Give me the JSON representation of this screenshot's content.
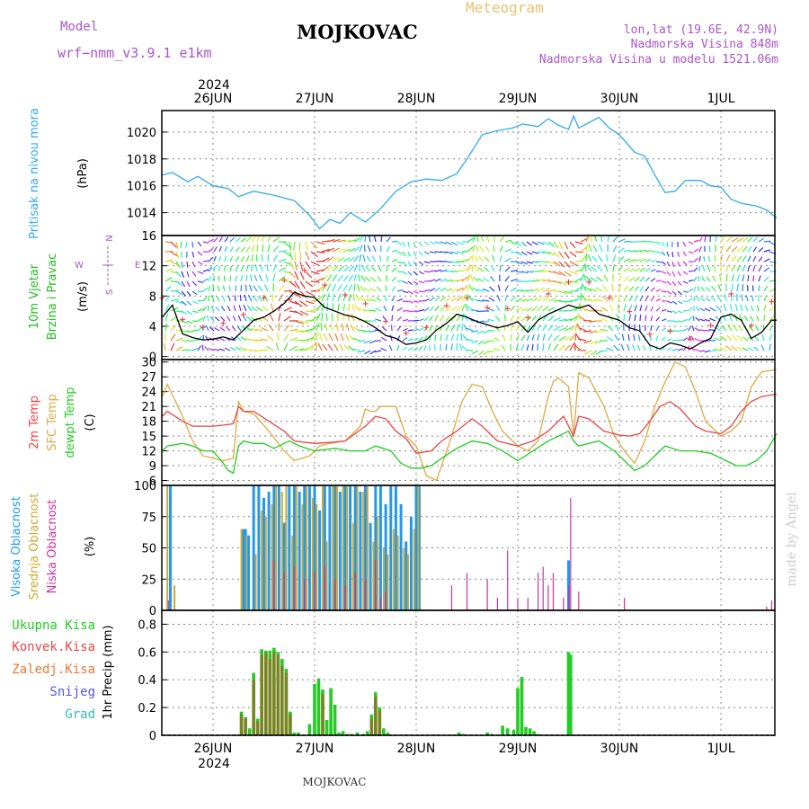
{
  "header": {
    "model_label": "Model",
    "model_name": "wrf−nmm_v3.9.1  e1km",
    "station": "MOJKOVAC",
    "meteogram_label": "Meteogram",
    "lonlat": "lon,lat (19.6E, 42.9N)",
    "elevation": "Nadmorska Visina 848m",
    "model_elevation": "Nadmorska Visina u modelu 1521.06m"
  },
  "footer": {
    "station": "MOJKOVAC",
    "credit": "made by Angel"
  },
  "colors": {
    "pressure": "#33aaee",
    "t2m": "#ee4444",
    "sfc": "#ddaa44",
    "dew": "#22cc22",
    "high_cloud": "#2299ee",
    "mid_cloud": "#ccaa33",
    "low_cloud": "#cc3399",
    "purple_text": "#aa55cc"
  },
  "chart_data": [
    {
      "type": "line",
      "title": "",
      "ylabel": "Pritisak na nivou mora",
      "unit": "(hPa)",
      "yticks": [
        1014,
        1016,
        1018,
        1020
      ],
      "ylim": [
        1012.3,
        1021.6
      ],
      "x_labels_top": [
        "26JUN",
        "27JUN",
        "28JUN",
        "29JUN",
        "30JUN",
        "1JUL"
      ],
      "year": "2024",
      "series": [
        {
          "x": [
            -0.5,
            -0.4,
            -0.25,
            -0.15,
            0,
            0.15,
            0.25,
            0.4,
            0.6,
            0.8,
            0.95,
            1.05,
            1.15,
            1.25,
            1.35,
            1.5,
            1.65,
            1.8,
            1.95,
            2.1,
            2.25,
            2.4,
            2.5,
            2.65,
            2.8,
            2.95,
            3.05,
            3.2,
            3.3,
            3.4,
            3.5,
            3.55,
            3.6,
            3.7,
            3.8,
            3.85,
            3.9,
            4.0,
            4.15,
            4.25,
            4.35,
            4.45,
            4.55,
            4.65,
            4.8,
            4.9,
            5.0,
            5.1,
            5.2,
            5.35,
            5.45,
            5.55
          ],
          "y": [
            1016.8,
            1017,
            1016.3,
            1016.7,
            1016,
            1015.8,
            1015.2,
            1015.6,
            1015.3,
            1014.9,
            1013.8,
            1012.8,
            1013.5,
            1013.2,
            1014,
            1013.3,
            1014.3,
            1015.6,
            1016.3,
            1016.5,
            1016.4,
            1016.9,
            1018,
            1019.8,
            1020.1,
            1020.3,
            1020.6,
            1020.4,
            1021,
            1020.5,
            1020.2,
            1021.2,
            1020.3,
            1020.7,
            1021.1,
            1020.7,
            1020.3,
            1019.8,
            1018.5,
            1018.2,
            1016.8,
            1015.5,
            1015.6,
            1016.4,
            1016.4,
            1016,
            1015.9,
            1015,
            1014.7,
            1014.5,
            1014.2,
            1013.6
          ]
        }
      ]
    },
    {
      "type": "line",
      "title": "",
      "ylabel": "10m Vjetar Brzina i Pravac",
      "unit": "(m/s)",
      "direction_key": [
        "N",
        "E",
        "W",
        "S"
      ],
      "yticks": [
        0,
        4,
        8,
        12,
        16
      ],
      "ylim": [
        -0.4,
        16
      ],
      "series": [
        {
          "x": [
            -0.5,
            -0.4,
            -0.3,
            -0.2,
            -0.1,
            0,
            0.1,
            0.2,
            0.3,
            0.4,
            0.5,
            0.6,
            0.7,
            0.8,
            0.9,
            1.0,
            1.1,
            1.2,
            1.3,
            1.4,
            1.5,
            1.6,
            1.7,
            1.8,
            1.9,
            2.0,
            2.1,
            2.2,
            2.3,
            2.4,
            2.5,
            2.6,
            2.7,
            2.8,
            2.9,
            3.0,
            3.1,
            3.2,
            3.3,
            3.4,
            3.5,
            3.6,
            3.7,
            3.8,
            3.9,
            4.0,
            4.1,
            4.2,
            4.3,
            4.4,
            4.5,
            4.6,
            4.7,
            4.8,
            4.9,
            5.0,
            5.1,
            5.2,
            5.3,
            5.4,
            5.5,
            5.55
          ],
          "y": [
            5.2,
            6.8,
            3,
            2.5,
            2.2,
            2.3,
            2.6,
            2.2,
            3.5,
            4.8,
            5.2,
            6,
            7,
            8.5,
            8,
            7.8,
            6.5,
            6,
            5.5,
            5.2,
            4.6,
            3.8,
            2.8,
            2.4,
            1.6,
            1.8,
            2.2,
            3.5,
            4.4,
            5.6,
            5.2,
            4.6,
            4.2,
            3.8,
            4.1,
            4.6,
            3.2,
            4.8,
            5.6,
            6.2,
            6.8,
            6.4,
            6.8,
            5.6,
            5.2,
            4.8,
            3.8,
            3.4,
            1.5,
            1,
            1.8,
            1.5,
            1,
            1.8,
            2.4,
            5.2,
            5.6,
            4.8,
            2.4,
            3.2,
            4.8,
            4.8
          ]
        }
      ]
    },
    {
      "type": "line",
      "title": "",
      "ylabel": "2m Temp / SFC Temp / dewpt Temp",
      "unit": "(C)",
      "yticks": [
        6,
        9,
        12,
        15,
        18,
        21,
        24,
        27,
        30
      ],
      "ylim": [
        5,
        30.5
      ],
      "series": [
        {
          "name": "2m Temp",
          "x": [
            -0.5,
            -0.45,
            -0.3,
            -0.2,
            0,
            0.1,
            0.2,
            0.25,
            0.3,
            0.4,
            0.55,
            0.7,
            0.8,
            1.0,
            1.15,
            1.3,
            1.5,
            1.6,
            1.7,
            1.8,
            1.9,
            2.0,
            2.15,
            2.25,
            2.4,
            2.55,
            2.65,
            2.8,
            3.0,
            3.15,
            3.3,
            3.45,
            3.5,
            3.55,
            3.6,
            3.7,
            3.85,
            4.0,
            4.1,
            4.2,
            4.3,
            4.4,
            4.5,
            4.6,
            4.75,
            4.85,
            5.0,
            5.1,
            5.2,
            5.3,
            5.4,
            5.55
          ],
          "y": [
            19,
            20,
            18,
            17,
            17,
            17.2,
            17.5,
            21,
            20,
            20,
            18,
            16,
            14,
            13.5,
            13.7,
            14,
            17,
            19,
            18.5,
            16,
            14.5,
            11.5,
            12,
            14,
            16,
            18.5,
            17,
            14,
            13,
            14,
            16,
            19,
            17,
            15,
            19,
            18.5,
            16,
            15.2,
            15,
            15.5,
            18,
            21,
            22,
            20.5,
            17,
            16,
            15.5,
            17,
            20,
            22,
            23,
            23.5
          ]
        },
        {
          "name": "SFC Temp",
          "x": [
            -0.5,
            -0.45,
            -0.3,
            -0.2,
            -0.1,
            0,
            0.1,
            0.2,
            0.25,
            0.3,
            0.4,
            0.55,
            0.7,
            0.8,
            0.95,
            1.05,
            1.15,
            1.3,
            1.45,
            1.5,
            1.55,
            1.6,
            1.65,
            1.8,
            1.9,
            2.0,
            2.1,
            2.2,
            2.35,
            2.45,
            2.55,
            2.65,
            2.75,
            2.85,
            3.0,
            3.1,
            3.2,
            3.3,
            3.35,
            3.4,
            3.5,
            3.55,
            3.6,
            3.7,
            3.85,
            3.95,
            4.05,
            4.15,
            4.25,
            4.35,
            4.45,
            4.55,
            4.65,
            4.75,
            4.85,
            5.0,
            5.1,
            5.2,
            5.3,
            5.4,
            5.55
          ],
          "y": [
            23,
            25.5,
            19,
            14,
            11,
            10.5,
            10,
            10.5,
            22,
            20,
            19.5,
            16,
            12,
            10,
            11,
            13,
            13.5,
            14,
            17,
            20.5,
            20,
            20,
            21,
            21,
            15,
            13,
            7,
            6,
            15,
            22,
            25.5,
            25,
            20,
            16,
            13,
            12,
            14,
            23,
            26,
            26.8,
            25,
            15,
            27.8,
            26.8,
            21,
            15,
            12,
            9.5,
            14,
            21,
            26,
            30,
            29,
            24,
            18,
            15,
            16,
            18,
            25,
            28,
            28.5
          ]
        },
        {
          "name": "dewpt Temp",
          "x": [
            -0.5,
            -0.45,
            -0.3,
            -0.2,
            -0.1,
            0,
            0.1,
            0.15,
            0.2,
            0.25,
            0.3,
            0.4,
            0.5,
            0.6,
            0.75,
            0.85,
            1.0,
            1.2,
            1.35,
            1.5,
            1.6,
            1.75,
            1.85,
            1.95,
            2.05,
            2.15,
            2.25,
            2.4,
            2.55,
            2.7,
            2.85,
            3.0,
            3.15,
            3.3,
            3.45,
            3.5,
            3.55,
            3.6,
            3.7,
            3.8,
            3.95,
            4.05,
            4.15,
            4.25,
            4.35,
            4.45,
            4.6,
            4.75,
            4.9,
            5.05,
            5.15,
            5.25,
            5.35,
            5.45,
            5.55
          ],
          "y": [
            12,
            13,
            13.5,
            13,
            12,
            12,
            9.5,
            8,
            7.5,
            13,
            14,
            13.5,
            13.5,
            12.5,
            14,
            13,
            12,
            12.5,
            12,
            12,
            13,
            12,
            9.5,
            8.5,
            8.5,
            9,
            10.5,
            12.5,
            14,
            13.5,
            12,
            10,
            12,
            14,
            15.5,
            16,
            14,
            13,
            13.5,
            14,
            12,
            10,
            8,
            9,
            11,
            13,
            12,
            12,
            11.5,
            10,
            9,
            9,
            10,
            12,
            15.5
          ]
        }
      ]
    },
    {
      "type": "bar",
      "title": "",
      "ylabel": "Visoka Oblacnost / Srednja Oblacnost / Niska Oblacnost",
      "unit": "(%)",
      "yticks": [
        0,
        25,
        50,
        75,
        100
      ],
      "ylim": [
        0,
        100
      ],
      "series": [
        {
          "name": "Visoka Oblacnost",
          "x": [
            0.3,
            0.32,
            0.35,
            0.4,
            0.45,
            0.5,
            0.55,
            0.6,
            0.65,
            0.7,
            0.75,
            0.8,
            0.85,
            0.9,
            0.95,
            1.0,
            1.05,
            1.1,
            1.15,
            1.2,
            1.25,
            1.3,
            1.35,
            1.4,
            1.45,
            1.5,
            1.55,
            1.6,
            1.65,
            1.7,
            1.75,
            1.8,
            1.85,
            1.9,
            1.95,
            2.0,
            2.03,
            -0.42,
            3.5
          ],
          "y": [
            65,
            65,
            60,
            100,
            100,
            90,
            95,
            100,
            100,
            70,
            100,
            100,
            95,
            100,
            100,
            100,
            80,
            100,
            100,
            100,
            95,
            100,
            100,
            100,
            95,
            100,
            70,
            100,
            100,
            85,
            100,
            100,
            85,
            55,
            75,
            100,
            100,
            100,
            40
          ]
        },
        {
          "name": "Srednja Oblacnost",
          "x": [
            0.28,
            0.33,
            0.42,
            0.48,
            0.52,
            0.58,
            0.62,
            0.68,
            0.72,
            0.78,
            0.82,
            0.88,
            0.92,
            0.98,
            1.02,
            1.08,
            1.12,
            1.18,
            1.22,
            1.28,
            1.32,
            1.38,
            1.42,
            1.48,
            1.52,
            1.58,
            1.62,
            1.68,
            1.72,
            1.78,
            1.82,
            1.88,
            1.92,
            1.98,
            2.02,
            -0.45,
            -0.38
          ],
          "y": [
            65,
            60,
            45,
            80,
            75,
            85,
            100,
            95,
            100,
            60,
            100,
            85,
            100,
            90,
            85,
            100,
            55,
            100,
            100,
            100,
            100,
            70,
            100,
            95,
            100,
            55,
            75,
            50,
            45,
            65,
            60,
            50,
            45,
            65,
            100,
            100,
            20
          ]
        },
        {
          "name": "Niska Oblacnost",
          "x": [
            -0.44,
            0.6,
            0.7,
            0.8,
            0.9,
            1.0,
            1.1,
            1.2,
            1.3,
            1.4,
            1.5,
            1.6,
            1.65,
            1.7,
            2.35,
            2.5,
            2.7,
            2.8,
            2.9,
            3.0,
            3.1,
            3.2,
            3.25,
            3.3,
            3.35,
            3.45,
            3.5,
            3.52,
            3.6,
            4.05,
            5.45,
            5.5
          ],
          "y": [
            8,
            40,
            30,
            35,
            25,
            30,
            35,
            25,
            20,
            30,
            25,
            40,
            10,
            15,
            20,
            30,
            25,
            10,
            48,
            10,
            10,
            30,
            35,
            20,
            30,
            10,
            20,
            90,
            15,
            10,
            3,
            8
          ]
        }
      ]
    },
    {
      "type": "bar",
      "title": "",
      "ylabel": "1hr Precip (mm)",
      "legend": [
        "Ukupna Kisa",
        "Konvek.Kisa",
        "Zaledj.Kisa",
        "Snijeg",
        "Grad"
      ],
      "yticks": [
        0,
        0.2,
        0.4,
        0.6,
        0.8
      ],
      "ylim": [
        0,
        0.9
      ],
      "x_labels_bottom": [
        "26JUN",
        "27JUN",
        "28JUN",
        "29JUN",
        "30JUN",
        "1JUL"
      ],
      "year": "2024",
      "series": [
        {
          "name": "Ukupna Kisa",
          "x": [
            0.28,
            0.32,
            0.36,
            0.4,
            0.44,
            0.48,
            0.52,
            0.56,
            0.6,
            0.64,
            0.68,
            0.72,
            0.76,
            0.8,
            0.84,
            0.95,
            1.0,
            1.04,
            1.08,
            1.12,
            1.16,
            1.2,
            1.24,
            1.28,
            1.32,
            1.36,
            1.42,
            1.48,
            1.52,
            1.56,
            1.6,
            1.64,
            1.68,
            1.72,
            2.42,
            2.46,
            2.7,
            2.74,
            2.85,
            2.9,
            2.96,
            3.0,
            3.04,
            3.08,
            3.12,
            3.16,
            3.2,
            3.5,
            3.52
          ],
          "y": [
            0.17,
            0.13,
            0.05,
            0.45,
            0.12,
            0.62,
            0.61,
            0.61,
            0.63,
            0.6,
            0.55,
            0.48,
            0.17,
            0.02,
            0.02,
            0.08,
            0.37,
            0.41,
            0.33,
            0.11,
            0.34,
            0.22,
            0.02,
            0.03,
            0.01,
            0.01,
            0.02,
            0.01,
            0.03,
            0.15,
            0.31,
            0.2,
            0.05,
            0.02,
            0.02,
            0.01,
            0.02,
            0.01,
            0.07,
            0.05,
            0.04,
            0.34,
            0.42,
            0.06,
            0.05,
            0.03,
            0.01,
            0.6,
            0.58
          ]
        },
        {
          "name": "Konvek.Kisa",
          "x": [
            0.28,
            0.32,
            0.4,
            0.44,
            0.48,
            0.52,
            0.56,
            0.6,
            0.64,
            0.68,
            0.72,
            0.76,
            1.08,
            1.56,
            1.6,
            1.64
          ],
          "y": [
            0.15,
            0.12,
            0.4,
            0.1,
            0.58,
            0.6,
            0.55,
            0.6,
            0.58,
            0.5,
            0.45,
            0.15,
            0.3,
            0.12,
            0.28,
            0.18
          ]
        }
      ]
    }
  ]
}
